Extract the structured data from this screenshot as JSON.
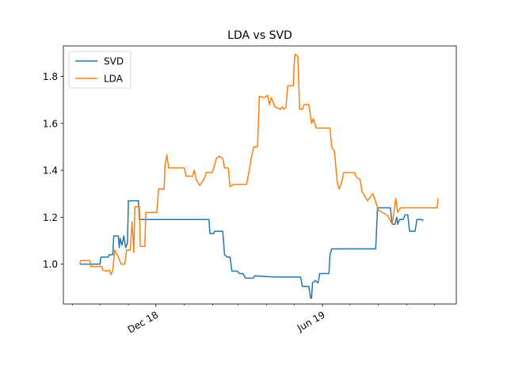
{
  "chart_data": {
    "type": "line",
    "title": "LDA vs SVD",
    "xlabel": "",
    "ylabel": "",
    "x_tick_labels": [
      "Dec 18",
      "Jun 19"
    ],
    "x_tick_dates": [
      "2018-12-01",
      "2019-06-01"
    ],
    "xlim": [
      "2018-08-22",
      "2019-10-25"
    ],
    "ylim": [
      0.83,
      1.93
    ],
    "y_ticks": [
      1.0,
      1.2,
      1.4,
      1.6,
      1.8
    ],
    "y_tick_labels": [
      "1.0",
      "1.2",
      "1.4",
      "1.6",
      "1.8"
    ],
    "grid": false,
    "legend_position": "top-left",
    "colors": {
      "SVD": "#1f77b4",
      "LDA": "#ff7f0e"
    },
    "series": [
      {
        "name": "SVD",
        "color": "#1f77b4",
        "points": [
          [
            "2018-09-09",
            1.0
          ],
          [
            "2018-09-18",
            1.0
          ],
          [
            "2018-09-26",
            1.0
          ],
          [
            "2018-10-01",
            1.0
          ],
          [
            "2018-10-02",
            1.03
          ],
          [
            "2018-10-10",
            1.03
          ],
          [
            "2018-10-11",
            1.04
          ],
          [
            "2018-10-15",
            1.04
          ],
          [
            "2018-10-16",
            1.12
          ],
          [
            "2018-10-21",
            1.12
          ],
          [
            "2018-10-22",
            1.07
          ],
          [
            "2018-10-23",
            1.11
          ],
          [
            "2018-10-25",
            1.08
          ],
          [
            "2018-10-27",
            1.12
          ],
          [
            "2018-10-29",
            1.07
          ],
          [
            "2018-10-31",
            1.09
          ],
          [
            "2018-11-01",
            1.27
          ],
          [
            "2018-11-12",
            1.27
          ],
          [
            "2018-11-13",
            1.19
          ],
          [
            "2018-12-05",
            1.19
          ],
          [
            "2019-01-10",
            1.19
          ],
          [
            "2019-01-28",
            1.19
          ],
          [
            "2019-01-29",
            1.13
          ],
          [
            "2019-02-02",
            1.13
          ],
          [
            "2019-02-03",
            1.14
          ],
          [
            "2019-02-12",
            1.14
          ],
          [
            "2019-02-14",
            1.04
          ],
          [
            "2019-02-17",
            1.03
          ],
          [
            "2019-02-20",
            1.03
          ],
          [
            "2019-02-22",
            0.97
          ],
          [
            "2019-02-28",
            0.97
          ],
          [
            "2019-03-02",
            0.96
          ],
          [
            "2019-03-06",
            0.96
          ],
          [
            "2019-03-09",
            0.94
          ],
          [
            "2019-03-17",
            0.94
          ],
          [
            "2019-03-19",
            0.95
          ],
          [
            "2019-04-10",
            0.945
          ],
          [
            "2019-05-08",
            0.945
          ],
          [
            "2019-05-10",
            0.905
          ],
          [
            "2019-05-17",
            0.905
          ],
          [
            "2019-05-19",
            0.855
          ],
          [
            "2019-05-20",
            0.855
          ],
          [
            "2019-05-21",
            0.92
          ],
          [
            "2019-05-24",
            0.93
          ],
          [
            "2019-05-27",
            0.92
          ],
          [
            "2019-05-29",
            0.96
          ],
          [
            "2019-06-08",
            0.96
          ],
          [
            "2019-06-09",
            1.04
          ],
          [
            "2019-06-11",
            1.065
          ],
          [
            "2019-06-20",
            1.065
          ],
          [
            "2019-07-10",
            1.065
          ],
          [
            "2019-07-29",
            1.065
          ],
          [
            "2019-07-31",
            1.24
          ],
          [
            "2019-08-08",
            1.24
          ],
          [
            "2019-08-14",
            1.24
          ],
          [
            "2019-08-16",
            1.17
          ],
          [
            "2019-08-19",
            1.17
          ],
          [
            "2019-08-21",
            1.2
          ],
          [
            "2019-08-22",
            1.17
          ],
          [
            "2019-08-24",
            1.19
          ],
          [
            "2019-08-28",
            1.19
          ],
          [
            "2019-08-30",
            1.21
          ],
          [
            "2019-09-02",
            1.21
          ],
          [
            "2019-09-04",
            1.14
          ],
          [
            "2019-09-10",
            1.14
          ],
          [
            "2019-09-12",
            1.19
          ],
          [
            "2019-09-17",
            1.19
          ],
          [
            "2019-09-19",
            1.185
          ]
        ]
      },
      {
        "name": "LDA",
        "color": "#ff7f0e",
        "points": [
          [
            "2018-09-09",
            1.0
          ],
          [
            "2018-09-10",
            1.015
          ],
          [
            "2018-09-20",
            1.015
          ],
          [
            "2018-09-21",
            0.99
          ],
          [
            "2018-10-03",
            0.99
          ],
          [
            "2018-10-04",
            0.975
          ],
          [
            "2018-10-08",
            0.97
          ],
          [
            "2018-10-11",
            0.975
          ],
          [
            "2018-10-13",
            0.955
          ],
          [
            "2018-10-15",
            0.975
          ],
          [
            "2018-10-17",
            1.06
          ],
          [
            "2018-10-21",
            1.03
          ],
          [
            "2018-10-24",
            1.0
          ],
          [
            "2018-10-28",
            1.0
          ],
          [
            "2018-10-30",
            1.06
          ],
          [
            "2018-11-03",
            1.06
          ],
          [
            "2018-11-05",
            1.18
          ],
          [
            "2018-11-07",
            1.05
          ],
          [
            "2018-11-08",
            1.245
          ],
          [
            "2018-11-13",
            1.245
          ],
          [
            "2018-11-14",
            1.075
          ],
          [
            "2018-11-19",
            1.075
          ],
          [
            "2018-11-20",
            1.22
          ],
          [
            "2018-12-02",
            1.22
          ],
          [
            "2018-12-04",
            1.32
          ],
          [
            "2018-12-10",
            1.32
          ],
          [
            "2018-12-11",
            1.42
          ],
          [
            "2018-12-13",
            1.465
          ],
          [
            "2018-12-15",
            1.41
          ],
          [
            "2019-01-01",
            1.41
          ],
          [
            "2019-01-03",
            1.375
          ],
          [
            "2019-01-10",
            1.375
          ],
          [
            "2019-01-12",
            1.4
          ],
          [
            "2019-01-14",
            1.36
          ],
          [
            "2019-01-18",
            1.335
          ],
          [
            "2019-01-23",
            1.365
          ],
          [
            "2019-01-25",
            1.39
          ],
          [
            "2019-01-31",
            1.39
          ],
          [
            "2019-02-02",
            1.405
          ],
          [
            "2019-02-05",
            1.45
          ],
          [
            "2019-02-08",
            1.46
          ],
          [
            "2019-02-12",
            1.45
          ],
          [
            "2019-02-14",
            1.41
          ],
          [
            "2019-02-18",
            1.41
          ],
          [
            "2019-02-20",
            1.33
          ],
          [
            "2019-02-24",
            1.34
          ],
          [
            "2019-03-10",
            1.34
          ],
          [
            "2019-03-13",
            1.4
          ],
          [
            "2019-03-15",
            1.45
          ],
          [
            "2019-03-18",
            1.5
          ],
          [
            "2019-03-22",
            1.5
          ],
          [
            "2019-03-24",
            1.715
          ],
          [
            "2019-03-30",
            1.71
          ],
          [
            "2019-04-02",
            1.72
          ],
          [
            "2019-04-04",
            1.68
          ],
          [
            "2019-04-06",
            1.71
          ],
          [
            "2019-04-10",
            1.67
          ],
          [
            "2019-04-16",
            1.66
          ],
          [
            "2019-04-18",
            1.67
          ],
          [
            "2019-04-20",
            1.66
          ],
          [
            "2019-04-22",
            1.67
          ],
          [
            "2019-04-24",
            1.76
          ],
          [
            "2019-04-30",
            1.76
          ],
          [
            "2019-05-01",
            1.85
          ],
          [
            "2019-05-02",
            1.895
          ],
          [
            "2019-05-05",
            1.885
          ],
          [
            "2019-05-07",
            1.66
          ],
          [
            "2019-05-10",
            1.66
          ],
          [
            "2019-05-12",
            1.68
          ],
          [
            "2019-05-17",
            1.68
          ],
          [
            "2019-05-20",
            1.6
          ],
          [
            "2019-05-22",
            1.62
          ],
          [
            "2019-05-25",
            1.58
          ],
          [
            "2019-06-09",
            1.58
          ],
          [
            "2019-06-11",
            1.5
          ],
          [
            "2019-06-14",
            1.48
          ],
          [
            "2019-06-17",
            1.35
          ],
          [
            "2019-06-19",
            1.32
          ],
          [
            "2019-06-22",
            1.35
          ],
          [
            "2019-06-24",
            1.39
          ],
          [
            "2019-07-06",
            1.39
          ],
          [
            "2019-07-08",
            1.37
          ],
          [
            "2019-07-12",
            1.36
          ],
          [
            "2019-07-14",
            1.31
          ],
          [
            "2019-07-20",
            1.27
          ],
          [
            "2019-07-26",
            1.3
          ],
          [
            "2019-08-01",
            1.23
          ],
          [
            "2019-08-10",
            1.21
          ],
          [
            "2019-08-12",
            1.2
          ],
          [
            "2019-08-16",
            1.17
          ],
          [
            "2019-08-20",
            1.28
          ],
          [
            "2019-08-22",
            1.22
          ],
          [
            "2019-08-25",
            1.24
          ],
          [
            "2019-09-15",
            1.24
          ],
          [
            "2019-09-30",
            1.24
          ],
          [
            "2019-10-04",
            1.24
          ],
          [
            "2019-10-05",
            1.28
          ]
        ]
      }
    ]
  }
}
